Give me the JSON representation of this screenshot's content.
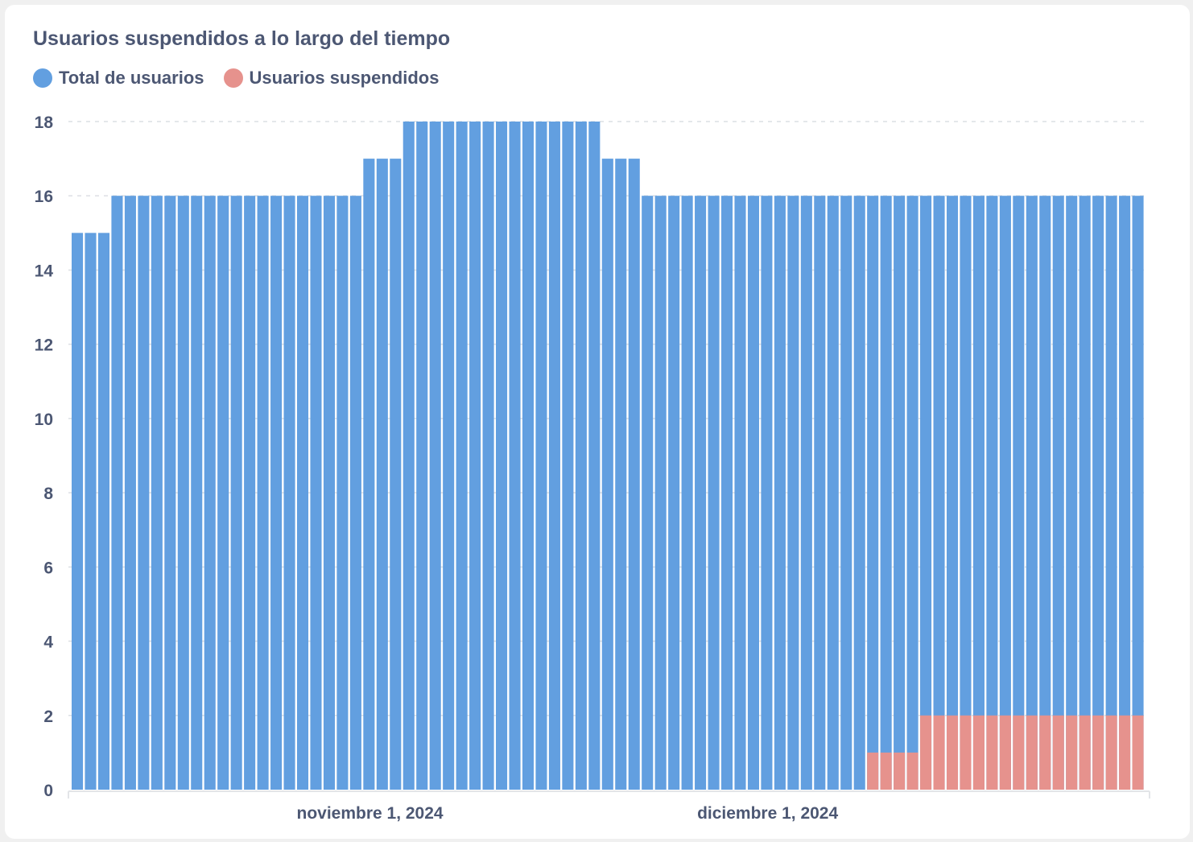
{
  "chart_data": {
    "type": "bar",
    "stacked": false,
    "title": "Usuarios suspendidos a lo largo del tiempo",
    "legend": {
      "placement": "top-left"
    },
    "series": [
      {
        "name": "Total de usuarios",
        "color": "#629fe0",
        "values": [
          15,
          15,
          15,
          16,
          16,
          16,
          16,
          16,
          16,
          16,
          16,
          16,
          16,
          16,
          16,
          16,
          16,
          16,
          16,
          16,
          16,
          16,
          17,
          17,
          17,
          18,
          18,
          18,
          18,
          18,
          18,
          18,
          18,
          18,
          18,
          18,
          18,
          18,
          18,
          18,
          17,
          17,
          17,
          16,
          16,
          16,
          16,
          16,
          16,
          16,
          16,
          16,
          16,
          16,
          16,
          16,
          16,
          16,
          16,
          16,
          16,
          16,
          16,
          16,
          16,
          16,
          16,
          16,
          16,
          16,
          16,
          16,
          16,
          16,
          16,
          16,
          16,
          16,
          16,
          16,
          16
        ]
      },
      {
        "name": "Usuarios suspendidos",
        "color": "#e6928d",
        "values": [
          0,
          0,
          0,
          0,
          0,
          0,
          0,
          0,
          0,
          0,
          0,
          0,
          0,
          0,
          0,
          0,
          0,
          0,
          0,
          0,
          0,
          0,
          0,
          0,
          0,
          0,
          0,
          0,
          0,
          0,
          0,
          0,
          0,
          0,
          0,
          0,
          0,
          0,
          0,
          0,
          0,
          0,
          0,
          0,
          0,
          0,
          0,
          0,
          0,
          0,
          0,
          0,
          0,
          0,
          0,
          0,
          0,
          0,
          0,
          0,
          1,
          1,
          1,
          1,
          2,
          2,
          2,
          2,
          2,
          2,
          2,
          2,
          2,
          2,
          2,
          2,
          2,
          2,
          2,
          2,
          2
        ]
      }
    ],
    "x_ticks": [
      {
        "label": "noviembre 1, 2024",
        "index": 22
      },
      {
        "label": "diciembre 1, 2024",
        "index": 52
      }
    ],
    "y_ticks": [
      0,
      2,
      4,
      6,
      8,
      10,
      12,
      14,
      16,
      18
    ],
    "ylim": [
      0,
      18
    ],
    "grid": "horizontal-dashed",
    "xlabel": "",
    "ylabel": ""
  }
}
